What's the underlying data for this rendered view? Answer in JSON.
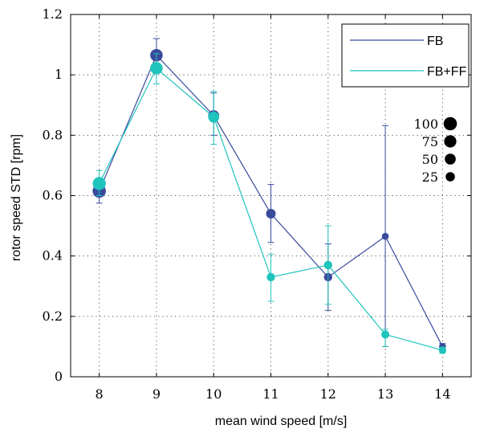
{
  "chart_data": {
    "type": "line",
    "title": "",
    "xlabel": "mean wind speed [m/s]",
    "ylabel": "rotor speed STD [rpm]",
    "xlim": [
      7.5,
      14.5
    ],
    "ylim": [
      0,
      1.2
    ],
    "xticks": [
      8,
      9,
      10,
      11,
      12,
      13,
      14
    ],
    "xtick_labels": [
      "8",
      "9",
      "10",
      "11",
      "12",
      "13",
      "14"
    ],
    "yticks": [
      0,
      0.2,
      0.4,
      0.6,
      0.8,
      1,
      1.2
    ],
    "ytick_labels": [
      "0",
      "0.2",
      "0.4",
      "0.6",
      "0.8",
      "1",
      "1.2"
    ],
    "grid": "dotted",
    "legend_position": "top-right",
    "marker_size_meaning": "number of samples",
    "series": [
      {
        "name": "FB",
        "color": "#3a4a9c",
        "x": [
          8,
          9,
          10,
          11,
          12,
          13,
          14
        ],
        "y": [
          0.615,
          1.065,
          0.865,
          0.54,
          0.33,
          0.465,
          0.1
        ],
        "err_low": [
          0.575,
          1.005,
          0.8,
          0.445,
          0.22,
          0.1,
          0.085
        ],
        "err_high": [
          0.655,
          1.12,
          0.94,
          0.637,
          0.44,
          0.832,
          0.11
        ],
        "counts": [
          100,
          80,
          50,
          30,
          15,
          5,
          5
        ]
      },
      {
        "name": "FB+FF",
        "color": "#1fc4bc",
        "x": [
          8,
          9,
          10,
          11,
          12,
          13,
          14
        ],
        "y": [
          0.64,
          1.022,
          0.86,
          0.33,
          0.37,
          0.14,
          0.088
        ],
        "err_low": [
          0.6,
          0.97,
          0.77,
          0.25,
          0.24,
          0.1,
          0.078
        ],
        "err_high": [
          0.683,
          1.07,
          0.945,
          0.405,
          0.5,
          0.157,
          0.098
        ],
        "counts": [
          95,
          80,
          50,
          15,
          15,
          12,
          8
        ]
      }
    ],
    "size_legend": [
      {
        "label": "100",
        "count": 100
      },
      {
        "label": "75",
        "count": 75
      },
      {
        "label": "50",
        "count": 50
      },
      {
        "label": "25",
        "count": 25
      }
    ]
  }
}
